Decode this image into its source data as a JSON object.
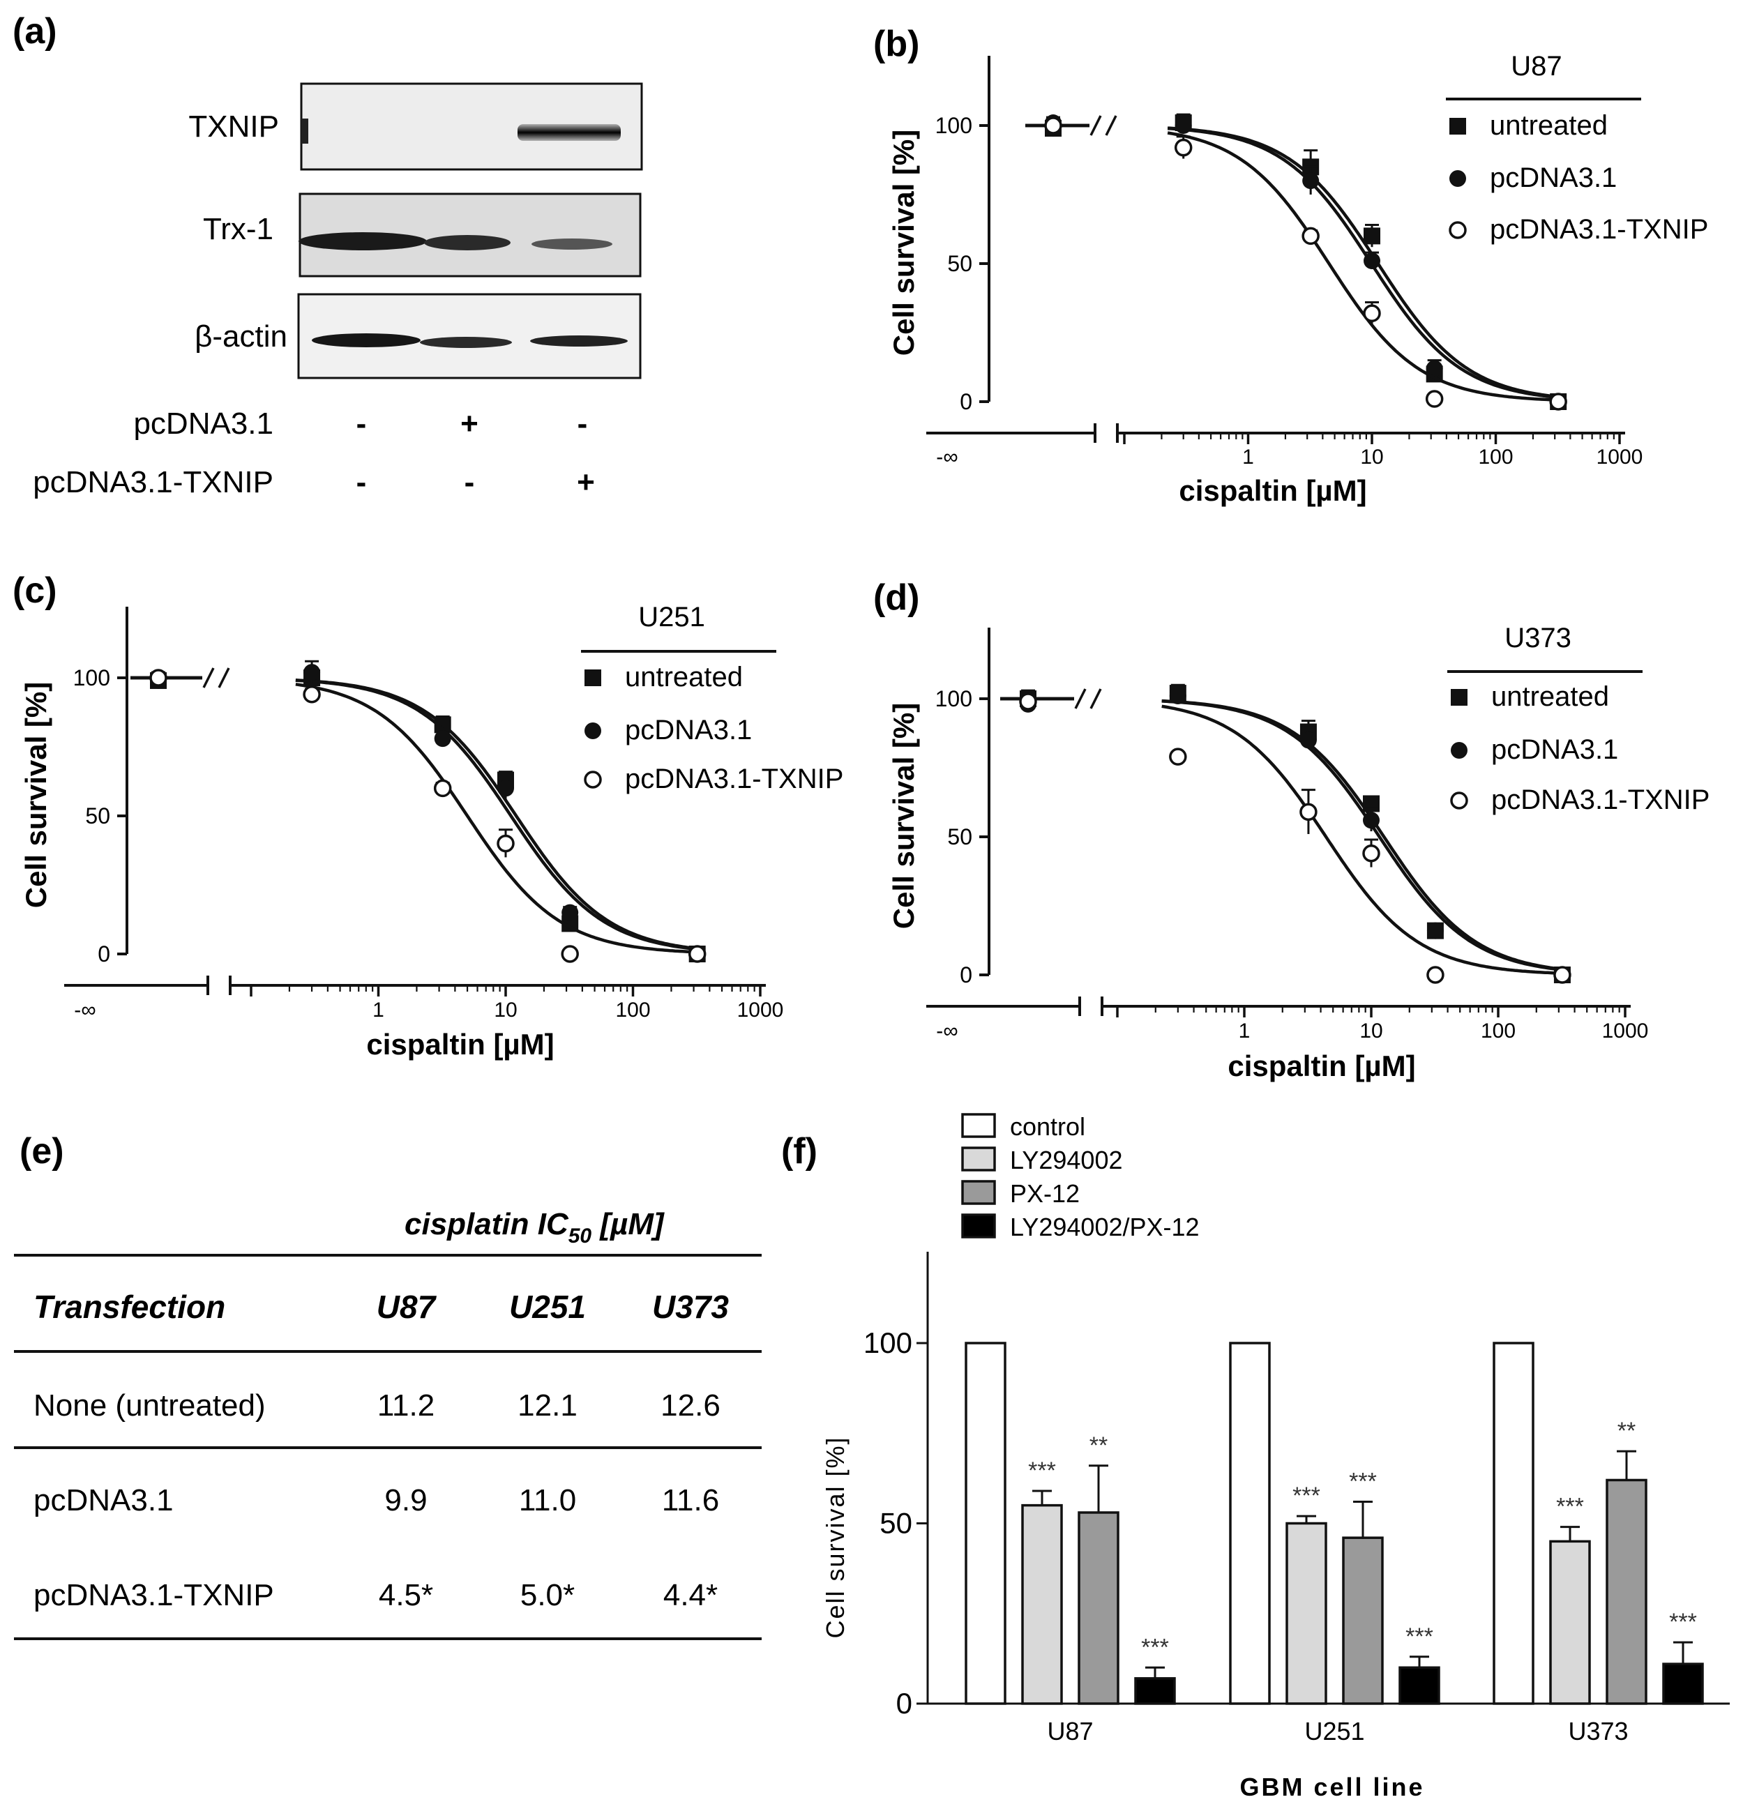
{
  "panel_labels": {
    "a": "(a)",
    "b": "(b)",
    "c": "(c)",
    "d": "(d)",
    "e": "(e)",
    "f": "(f)"
  },
  "blot": {
    "rows": [
      "TXNIP",
      "Trx-1",
      "β-actin"
    ],
    "conditions": [
      {
        "label": "pcDNA3.1",
        "signs": [
          "-",
          "+",
          "-"
        ]
      },
      {
        "label": "pcDNA3.1-TXNIP",
        "signs": [
          "-",
          "-",
          "+"
        ]
      }
    ]
  },
  "chart_data": [
    {
      "panel": "b",
      "type": "scatter",
      "fit": "sigmoid dose-response",
      "xscale": "log",
      "xlabel": "cispaltin [µM]",
      "ylabel": "Cell survival [%]",
      "xticks": [
        "-∞",
        "1",
        "10",
        "100",
        "1000"
      ],
      "yticks": [
        "0",
        "50",
        "100"
      ],
      "ylim": [
        0,
        125
      ],
      "legend_title": "U87",
      "legend_position": "top-right",
      "series": [
        {
          "name": "untreated",
          "marker": "filled-square",
          "x": [
            "-∞",
            0.3,
            3.2,
            10,
            32,
            320
          ],
          "y": [
            99,
            101,
            85,
            60,
            10,
            0
          ],
          "err": [
            3,
            3,
            6,
            4,
            2,
            1
          ],
          "ic50": 11.2
        },
        {
          "name": "pcDNA3.1",
          "marker": "filled-circle",
          "x": [
            "-∞",
            0.3,
            3.2,
            10,
            32,
            320
          ],
          "y": [
            101,
            100,
            80,
            51,
            12,
            0
          ],
          "err": [
            2,
            2,
            5,
            3,
            3,
            1
          ],
          "ic50": 9.9
        },
        {
          "name": "pcDNA3.1-TXNIP",
          "marker": "open-circle",
          "x": [
            "-∞",
            0.3,
            3.2,
            10,
            32,
            320
          ],
          "y": [
            100,
            92,
            60,
            32,
            1,
            0
          ],
          "err": [
            2,
            4,
            2,
            4,
            1,
            1
          ],
          "ic50": 4.5
        }
      ]
    },
    {
      "panel": "c",
      "type": "scatter",
      "fit": "sigmoid dose-response",
      "xscale": "log",
      "xlabel": "cispaltin [µM]",
      "ylabel": "Cell survival [%]",
      "xticks": [
        "-∞",
        "1",
        "10",
        "100",
        "1000"
      ],
      "yticks": [
        "0",
        "50",
        "100"
      ],
      "ylim": [
        0,
        125
      ],
      "legend_title": "U251",
      "legend_position": "top-right",
      "series": [
        {
          "name": "untreated",
          "marker": "filled-square",
          "x": [
            "-∞",
            0.3,
            3.2,
            10,
            32,
            320
          ],
          "y": [
            99,
            100,
            83,
            63,
            11,
            0
          ],
          "err": [
            3,
            3,
            3,
            3,
            2,
            1
          ],
          "ic50": 12.1
        },
        {
          "name": "pcDNA3.1",
          "marker": "filled-circle",
          "x": [
            "-∞",
            0.3,
            3.2,
            10,
            32,
            320
          ],
          "y": [
            100,
            102,
            78,
            60,
            15,
            0
          ],
          "err": [
            2,
            4,
            3,
            4,
            2,
            1
          ],
          "ic50": 11.0
        },
        {
          "name": "pcDNA3.1-TXNIP",
          "marker": "open-circle",
          "x": [
            "-∞",
            0.3,
            3.2,
            10,
            32,
            320
          ],
          "y": [
            100,
            94,
            60,
            40,
            0,
            0
          ],
          "err": [
            2,
            2,
            2,
            5,
            1,
            1
          ],
          "ic50": 5.0
        }
      ]
    },
    {
      "panel": "d",
      "type": "scatter",
      "fit": "sigmoid dose-response",
      "xscale": "log",
      "xlabel": "cispaltin [µM]",
      "ylabel": "Cell survival [%]",
      "xticks": [
        "-∞",
        "1",
        "10",
        "100",
        "1000"
      ],
      "yticks": [
        "0",
        "50",
        "100"
      ],
      "ylim": [
        0,
        125
      ],
      "legend_title": "U373",
      "legend_position": "top-right",
      "series": [
        {
          "name": "untreated",
          "marker": "filled-square",
          "x": [
            "-∞",
            0.3,
            3.2,
            10,
            32,
            320
          ],
          "y": [
            100,
            102,
            88,
            62,
            16,
            0
          ],
          "err": [
            3,
            3,
            4,
            2,
            2,
            1
          ],
          "ic50": 12.6
        },
        {
          "name": "pcDNA3.1",
          "marker": "filled-circle",
          "x": [
            "-∞",
            0.3,
            3.2,
            10,
            32,
            320
          ],
          "y": [
            98,
            101,
            85,
            56,
            16,
            0
          ],
          "err": [
            2,
            2,
            3,
            4,
            2,
            1
          ],
          "ic50": 11.6
        },
        {
          "name": "pcDNA3.1-TXNIP",
          "marker": "open-circle",
          "x": [
            "-∞",
            0.3,
            3.2,
            10,
            32,
            320
          ],
          "y": [
            99,
            79,
            59,
            44,
            0,
            0
          ],
          "err": [
            2,
            1,
            8,
            5,
            1,
            1
          ],
          "ic50": 4.4
        }
      ]
    },
    {
      "panel": "e",
      "type": "table",
      "title": "cisplatin IC50 [µM]",
      "title_main": "cisplatin IC",
      "title_sub": "50",
      "title_tail": " [µM]",
      "columns": [
        "Transfection",
        "U87",
        "U251",
        "U373"
      ],
      "rows": [
        [
          "None (untreated)",
          "11.2",
          "12.1",
          "12.6"
        ],
        [
          "pcDNA3.1",
          "9.9",
          "11.0",
          "11.6"
        ],
        [
          "pcDNA3.1-TXNIP",
          "4.5*",
          "5.0*",
          "4.4*"
        ]
      ]
    },
    {
      "panel": "f",
      "type": "bar",
      "categories": [
        "U87",
        "U251",
        "U373"
      ],
      "xlabel": "GBM cell line",
      "ylabel": "Cell survival [%]",
      "yticks": [
        "0",
        "50",
        "100"
      ],
      "ylim": [
        0,
        125
      ],
      "legend_position": "top-left",
      "series": [
        {
          "name": "control",
          "color": "#ffffff",
          "values": [
            100,
            100,
            100
          ],
          "err": [
            0,
            0,
            0
          ],
          "sig": [
            "",
            "",
            ""
          ]
        },
        {
          "name": "LY294002",
          "color": "#d9d9d9",
          "values": [
            55,
            50,
            45
          ],
          "err": [
            4,
            2,
            4
          ],
          "sig": [
            "***",
            "***",
            "***"
          ]
        },
        {
          "name": "PX-12",
          "color": "#9a9a9a",
          "values": [
            53,
            46,
            62
          ],
          "err": [
            13,
            10,
            8
          ],
          "sig": [
            "**",
            "***",
            "**"
          ]
        },
        {
          "name": "LY294002/PX-12",
          "color": "#000000",
          "values": [
            7,
            10,
            11
          ],
          "err": [
            3,
            3,
            6
          ],
          "sig": [
            "***",
            "***",
            "***"
          ]
        }
      ]
    }
  ]
}
